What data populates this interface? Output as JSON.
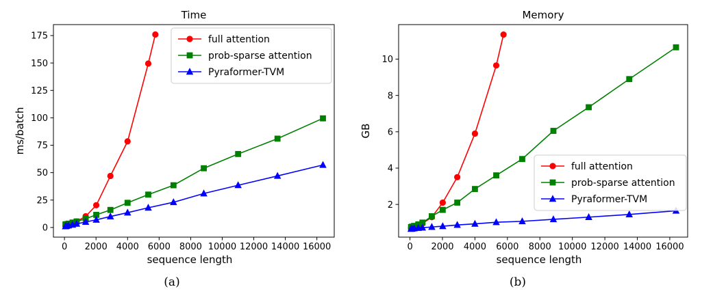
{
  "chart_data": [
    {
      "type": "line",
      "title": "Time",
      "xlabel": "sequence length",
      "ylabel": "ms/batch",
      "caption": "(a)",
      "xlim": [
        -700,
        17100
      ],
      "ylim": [
        -8.8,
        185
      ],
      "xticks": [
        0,
        2000,
        4000,
        6000,
        8000,
        10000,
        12000,
        14000,
        16000
      ],
      "yticks": [
        0,
        25,
        50,
        75,
        100,
        125,
        150,
        175
      ],
      "legend_position": "upper-right",
      "series": [
        {
          "name": "full attention",
          "color": "#ff0000",
          "marker": "circle",
          "x": [
            64,
            128,
            256,
            512,
            768,
            1344,
            2016,
            2912,
            4000,
            5312,
            5760
          ],
          "y": [
            1.5,
            1.8,
            2.5,
            3.5,
            5.5,
            10.2,
            20.3,
            47.0,
            78.5,
            149.5,
            176.0
          ]
        },
        {
          "name": "prob-sparse attention",
          "color": "#008000",
          "marker": "square",
          "x": [
            64,
            128,
            256,
            512,
            768,
            1344,
            2016,
            2912,
            4000,
            5312,
            6912,
            8832,
            11008,
            13504,
            16384
          ],
          "y": [
            2.8,
            3.0,
            3.5,
            4.5,
            5.5,
            8.0,
            11.5,
            16.0,
            22.5,
            30.0,
            38.5,
            54.0,
            67.0,
            81.0,
            99.5
          ]
        },
        {
          "name": "Pyraformer-TVM",
          "color": "#0000ff",
          "marker": "triangle",
          "x": [
            64,
            128,
            256,
            512,
            768,
            1344,
            2016,
            2912,
            4000,
            5312,
            6912,
            8832,
            11008,
            13504,
            16384
          ],
          "y": [
            1.0,
            1.3,
            1.8,
            2.5,
            3.3,
            5.0,
            7.0,
            10.0,
            13.5,
            18.0,
            23.0,
            31.0,
            38.5,
            47.0,
            57.0
          ]
        }
      ]
    },
    {
      "type": "line",
      "title": "Memory",
      "xlabel": "sequence length",
      "ylabel": "GB",
      "caption": "(b)",
      "xlim": [
        -700,
        17100
      ],
      "ylim": [
        0.2,
        11.9
      ],
      "xticks": [
        0,
        2000,
        4000,
        6000,
        8000,
        10000,
        12000,
        14000,
        16000
      ],
      "yticks": [
        2,
        4,
        6,
        8,
        10
      ],
      "legend_position": "center-right",
      "series": [
        {
          "name": "full attention",
          "color": "#ff0000",
          "marker": "circle",
          "x": [
            64,
            128,
            256,
            512,
            768,
            1344,
            2016,
            2912,
            4000,
            5312,
            5760
          ],
          "y": [
            0.7,
            0.72,
            0.75,
            0.82,
            0.95,
            1.3,
            2.1,
            3.5,
            5.9,
            9.65,
            11.35
          ]
        },
        {
          "name": "prob-sparse attention",
          "color": "#008000",
          "marker": "square",
          "x": [
            64,
            128,
            256,
            512,
            768,
            1344,
            2016,
            2912,
            4000,
            5312,
            6912,
            8832,
            11008,
            13504,
            16384
          ],
          "y": [
            0.75,
            0.78,
            0.82,
            0.9,
            1.0,
            1.35,
            1.7,
            2.1,
            2.85,
            3.6,
            4.5,
            6.05,
            7.35,
            8.9,
            10.65
          ]
        },
        {
          "name": "Pyraformer-TVM",
          "color": "#0000ff",
          "marker": "triangle",
          "x": [
            64,
            128,
            256,
            512,
            768,
            1344,
            2016,
            2912,
            4000,
            5312,
            6912,
            8832,
            11008,
            13504,
            16384
          ],
          "y": [
            0.65,
            0.66,
            0.68,
            0.7,
            0.72,
            0.76,
            0.8,
            0.87,
            0.93,
            1.02,
            1.07,
            1.18,
            1.3,
            1.45,
            1.65
          ]
        }
      ]
    }
  ]
}
